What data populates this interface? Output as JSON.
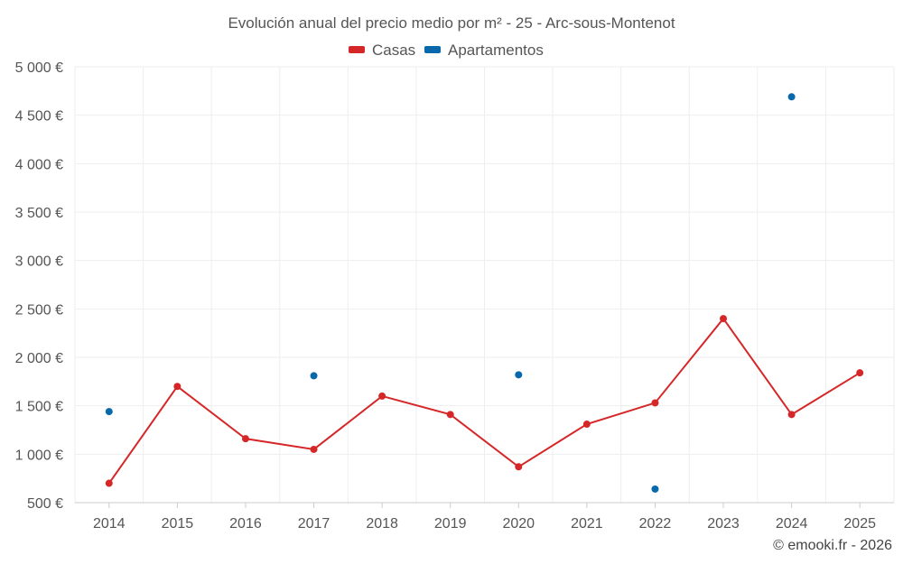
{
  "chart_data": {
    "type": "line",
    "title": "Evolución anual del precio medio por m² - 25 - Arc-sous-Montenot",
    "xlabel": "",
    "ylabel": "",
    "categories": [
      "2014",
      "2015",
      "2016",
      "2017",
      "2018",
      "2019",
      "2020",
      "2021",
      "2022",
      "2023",
      "2024",
      "2025"
    ],
    "ylim": [
      500,
      5000
    ],
    "y_ticks": [
      500,
      1000,
      1500,
      2000,
      2500,
      3000,
      3500,
      4000,
      4500,
      5000
    ],
    "y_tick_labels": [
      "500 €",
      "1 000 €",
      "1 500 €",
      "2 000 €",
      "2 500 €",
      "3 000 €",
      "3 500 €",
      "4 000 €",
      "4 500 €",
      "5 000 €"
    ],
    "grid": true,
    "legend_position": "top-center",
    "series": [
      {
        "name": "Casas",
        "color": "#d62728",
        "style": "line+markers",
        "values": [
          700,
          1700,
          1160,
          1050,
          1600,
          1410,
          870,
          1310,
          1530,
          2400,
          1410,
          1840
        ]
      },
      {
        "name": "Apartamentos",
        "color": "#0868ac",
        "style": "markers",
        "values": [
          1440,
          null,
          null,
          1810,
          null,
          null,
          1820,
          null,
          640,
          null,
          4690,
          null
        ]
      }
    ]
  },
  "credit": "© emooki.fr - 2026"
}
